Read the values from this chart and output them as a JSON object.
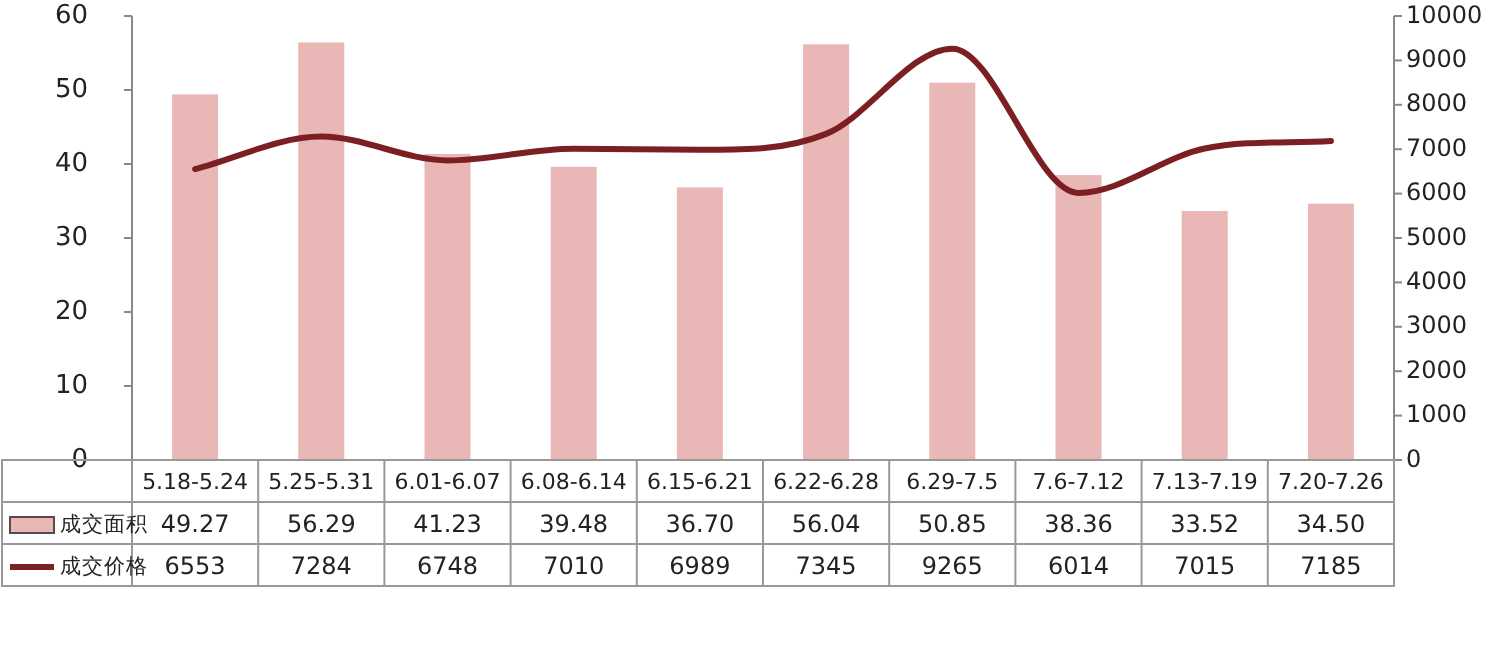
{
  "chart_data": {
    "type": "bar",
    "categories": [
      "5.18-5.24",
      "5.25-5.31",
      "6.01-6.07",
      "6.08-6.14",
      "6.15-6.21",
      "6.22-6.28",
      "6.29-7.5",
      "7.6-7.12",
      "7.13-7.19",
      "7.20-7.26"
    ],
    "series": [
      {
        "name": "成交面积",
        "color": "#e9b7b5",
        "values": [
          49.27,
          56.29,
          41.23,
          39.48,
          36.7,
          56.04,
          50.85,
          38.36,
          33.52,
          34.5
        ],
        "value_labels": [
          "49.27",
          "56.29",
          "41.23",
          "39.48",
          "36.70",
          "56.04",
          "50.85",
          "38.36",
          "33.52",
          "34.50"
        ]
      },
      {
        "name": "成交价格",
        "type": "line",
        "axis": "y2",
        "color": "#7b1f22",
        "values": [
          6553,
          7284,
          6748,
          7010,
          6989,
          7345,
          9265,
          6014,
          7015,
          7185
        ],
        "value_labels": [
          "6553",
          "7284",
          "6748",
          "7010",
          "6989",
          "7345",
          "9265",
          "6014",
          "7015",
          "7185"
        ]
      }
    ],
    "ylim": [
      0,
      60
    ],
    "yticks": [
      0,
      10,
      20,
      30,
      40,
      50,
      60
    ],
    "y2lim": [
      0,
      10000
    ],
    "y2ticks": [
      0,
      1000,
      2000,
      3000,
      4000,
      5000,
      6000,
      7000,
      8000,
      9000,
      10000
    ],
    "legend": "bottom left",
    "grid": false
  }
}
